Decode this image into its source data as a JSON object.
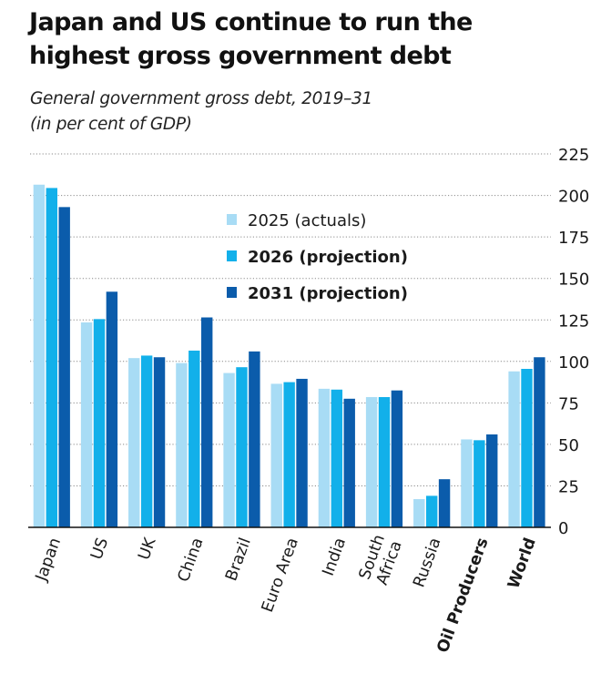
{
  "title": "Japan and US continue to run the highest gross government debt",
  "title_lines": [
    "Japan and US continue to run the",
    "highest gross government debt"
  ],
  "subtitle_lines": [
    "General government gross debt, 2019–31",
    "(in per cent of GDP)"
  ],
  "colors": {
    "2025": "#a8dcf5",
    "2026": "#12b0ea",
    "2031": "#0b5cab",
    "grid": "#8a8a8a",
    "axis": "#111111"
  },
  "chart_data": {
    "type": "bar",
    "title": "Japan and US continue to run the highest gross government debt",
    "subtitle": "General government gross debt, 2019–31 (in per cent of GDP)",
    "xlabel": "",
    "ylabel": "",
    "ylim": [
      0,
      225
    ],
    "yticks": [
      0,
      25,
      50,
      75,
      100,
      125,
      150,
      175,
      200,
      225
    ],
    "y_axis_side": "right",
    "grid": true,
    "legend_placement": "top-center",
    "categories": [
      "Japan",
      "US",
      "UK",
      "China",
      "Brazil",
      "Euro Area",
      "India",
      "South Africa",
      "Russia",
      "Oil Producers",
      "World"
    ],
    "category_label_lines": [
      [
        "Japan"
      ],
      [
        "US"
      ],
      [
        "UK"
      ],
      [
        "China"
      ],
      [
        "Brazil"
      ],
      [
        "Euro Area"
      ],
      [
        "India"
      ],
      [
        "South",
        "Africa"
      ],
      [
        "Russia"
      ],
      [
        "Oil Producers"
      ],
      [
        "World"
      ]
    ],
    "bold_categories": [
      "Oil Producers",
      "World"
    ],
    "series": [
      {
        "name": "2025 (actuals)",
        "key": "2025",
        "bold": false,
        "values": [
          206.5,
          123.5,
          102,
          99,
          93,
          86.5,
          83.5,
          78.5,
          17,
          53,
          94
        ]
      },
      {
        "name": "2026 (projection)",
        "key": "2026",
        "bold": true,
        "values": [
          204.5,
          125.5,
          103.5,
          106.5,
          96.5,
          87.5,
          83,
          78.5,
          19,
          52.5,
          95.5
        ]
      },
      {
        "name": "2031 (projection)",
        "key": "2031",
        "bold": true,
        "values": [
          193,
          142,
          102.5,
          126.5,
          106,
          89.5,
          77.5,
          82.5,
          29,
          56,
          102.5
        ]
      }
    ]
  }
}
